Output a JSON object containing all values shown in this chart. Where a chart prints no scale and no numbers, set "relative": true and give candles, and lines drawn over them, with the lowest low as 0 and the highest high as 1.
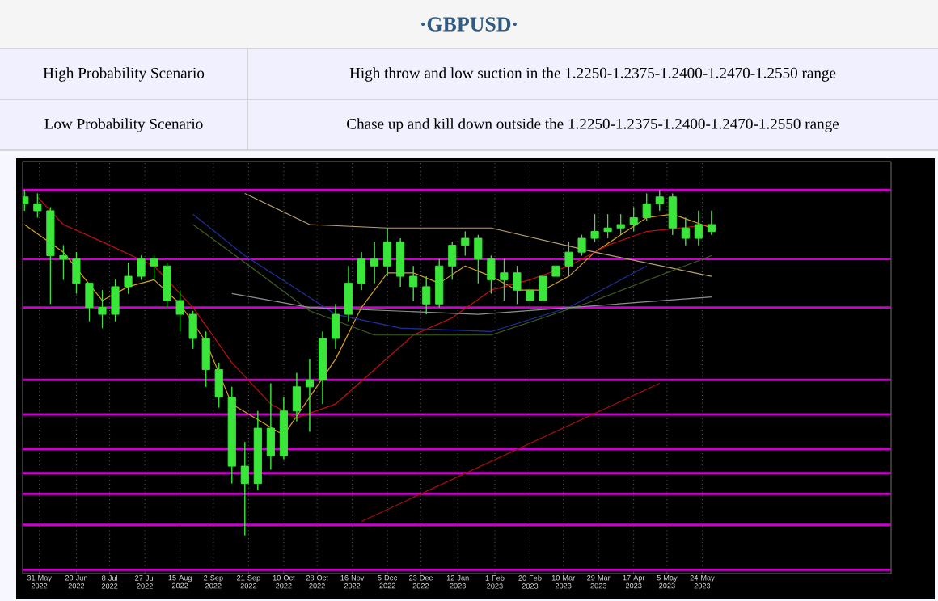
{
  "chart_data": [
    {
      "type": "other",
      "title": "·GBPUSD·",
      "annotations": [
        "High Probability Scenario",
        "High throw and low suction in the 1.2250-1.2375-1.2400-1.2470-1.2550 range",
        "Low Probability Scenario",
        "Chase up and kill down outside the 1.2250-1.2375-1.2400-1.2470-1.2550 range"
      ]
    },
    {
      "type": "candlestick",
      "relative": true,
      "color": "#39e639",
      "grid": "x",
      "xlim": [
        "2022-05-22",
        "2023-09-03"
      ],
      "xticks": [
        {
          "value": "2022-05-31",
          "label": "31 May 2022"
        },
        {
          "value": "2022-06-20",
          "label": "20 Jun 2022"
        },
        {
          "value": "2022-07-08",
          "label": "8 Jul 2022"
        },
        {
          "value": "2022-07-27",
          "label": "27 Jul 2022"
        },
        {
          "value": "2022-08-15",
          "label": "15 Aug 2022"
        },
        {
          "value": "2022-09-02",
          "label": "2 Sep 2022"
        },
        {
          "value": "2022-09-21",
          "label": "21 Sep 2022"
        },
        {
          "value": "2022-10-10",
          "label": "10 Oct 2022"
        },
        {
          "value": "2022-10-28",
          "label": "28 Oct 2022"
        },
        {
          "value": "2022-11-16",
          "label": "16 Nov 2022"
        },
        {
          "value": "2022-12-05",
          "label": "5 Dec 2022"
        },
        {
          "value": "2022-12-23",
          "label": "23 Dec 2022"
        },
        {
          "value": "2023-01-12",
          "label": "12 Jan 2023"
        },
        {
          "value": "2023-02-01",
          "label": "1 Feb 2023"
        },
        {
          "value": "2023-02-20",
          "label": "20 Feb 2023"
        },
        {
          "value": "2023-03-10",
          "label": "10 Mar 2023"
        },
        {
          "value": "2023-03-29",
          "label": "29 Mar 2023"
        },
        {
          "value": "2023-04-17",
          "label": "17 Apr 2023"
        },
        {
          "value": "2023-05-05",
          "label": "5 May 2023"
        },
        {
          "value": "2023-05-24",
          "label": "24 May 2023"
        }
      ],
      "x": [
        "2022-05-23",
        "2022-05-30",
        "2022-06-06",
        "2022-06-13",
        "2022-06-20",
        "2022-06-27",
        "2022-07-04",
        "2022-07-11",
        "2022-07-18",
        "2022-07-25",
        "2022-08-01",
        "2022-08-08",
        "2022-08-15",
        "2022-08-22",
        "2022-08-29",
        "2022-09-05",
        "2022-09-12",
        "2022-09-19",
        "2022-09-26",
        "2022-10-03",
        "2022-10-10",
        "2022-10-17",
        "2022-10-24",
        "2022-10-31",
        "2022-11-07",
        "2022-11-14",
        "2022-11-21",
        "2022-11-28",
        "2022-12-05",
        "2022-12-12",
        "2022-12-19",
        "2022-12-26",
        "2023-01-02",
        "2023-01-09",
        "2023-01-16",
        "2023-01-23",
        "2023-01-30",
        "2023-02-06",
        "2023-02-13",
        "2023-02-20",
        "2023-02-27",
        "2023-03-06",
        "2023-03-13",
        "2023-03-20",
        "2023-03-27",
        "2023-04-03",
        "2023-04-10",
        "2023-04-17",
        "2023-04-24",
        "2023-05-01",
        "2023-05-08",
        "2023-05-15",
        "2023-05-22",
        "2023-05-29"
      ],
      "ohlc": [
        [
          0.98,
          1.0,
          0.94,
          0.96
        ],
        [
          0.96,
          0.99,
          0.92,
          0.94
        ],
        [
          0.94,
          0.95,
          0.67,
          0.81
        ],
        [
          0.81,
          0.84,
          0.74,
          0.8
        ],
        [
          0.8,
          0.82,
          0.7,
          0.73
        ],
        [
          0.73,
          0.73,
          0.62,
          0.66
        ],
        [
          0.66,
          0.71,
          0.6,
          0.64
        ],
        [
          0.64,
          0.74,
          0.62,
          0.72
        ],
        [
          0.72,
          0.79,
          0.7,
          0.75
        ],
        [
          0.75,
          0.81,
          0.74,
          0.8
        ],
        [
          0.8,
          0.81,
          0.74,
          0.78
        ],
        [
          0.78,
          0.79,
          0.66,
          0.68
        ],
        [
          0.68,
          0.71,
          0.59,
          0.64
        ],
        [
          0.64,
          0.65,
          0.54,
          0.57
        ],
        [
          0.57,
          0.59,
          0.43,
          0.48
        ],
        [
          0.48,
          0.5,
          0.37,
          0.4
        ],
        [
          0.4,
          0.43,
          0.15,
          0.2
        ],
        [
          0.2,
          0.27,
          0.0,
          0.15
        ],
        [
          0.15,
          0.36,
          0.13,
          0.31
        ],
        [
          0.31,
          0.44,
          0.19,
          0.23
        ],
        [
          0.23,
          0.4,
          0.22,
          0.36
        ],
        [
          0.36,
          0.47,
          0.33,
          0.43
        ],
        [
          0.43,
          0.51,
          0.3,
          0.45
        ],
        [
          0.45,
          0.59,
          0.38,
          0.57
        ],
        [
          0.57,
          0.67,
          0.54,
          0.64
        ],
        [
          0.64,
          0.78,
          0.62,
          0.73
        ],
        [
          0.73,
          0.82,
          0.71,
          0.8
        ],
        [
          0.8,
          0.85,
          0.73,
          0.78
        ],
        [
          0.78,
          0.89,
          0.75,
          0.85
        ],
        [
          0.85,
          0.86,
          0.72,
          0.75
        ],
        [
          0.75,
          0.78,
          0.68,
          0.72
        ],
        [
          0.72,
          0.75,
          0.64,
          0.67
        ],
        [
          0.67,
          0.8,
          0.66,
          0.78
        ],
        [
          0.78,
          0.85,
          0.74,
          0.84
        ],
        [
          0.84,
          0.88,
          0.81,
          0.86
        ],
        [
          0.86,
          0.87,
          0.73,
          0.8
        ],
        [
          0.8,
          0.81,
          0.7,
          0.74
        ],
        [
          0.74,
          0.8,
          0.68,
          0.76
        ],
        [
          0.76,
          0.78,
          0.67,
          0.71
        ],
        [
          0.71,
          0.74,
          0.64,
          0.68
        ],
        [
          0.68,
          0.78,
          0.6,
          0.75
        ],
        [
          0.75,
          0.81,
          0.73,
          0.78
        ],
        [
          0.78,
          0.85,
          0.75,
          0.82
        ],
        [
          0.82,
          0.87,
          0.81,
          0.86
        ],
        [
          0.86,
          0.93,
          0.85,
          0.88
        ],
        [
          0.88,
          0.93,
          0.86,
          0.89
        ],
        [
          0.89,
          0.93,
          0.87,
          0.9
        ],
        [
          0.9,
          0.95,
          0.88,
          0.92
        ],
        [
          0.92,
          0.99,
          0.91,
          0.96
        ],
        [
          0.96,
          1.0,
          0.94,
          0.98
        ],
        [
          0.98,
          0.99,
          0.87,
          0.89
        ],
        [
          0.89,
          0.92,
          0.84,
          0.86
        ],
        [
          0.86,
          0.94,
          0.84,
          0.9
        ],
        [
          0.9,
          0.94,
          0.87,
          0.88
        ]
      ],
      "series": [
        {
          "type": "line",
          "color": "#d4a020",
          "x": [
            "2022-05-23",
            "2022-06-13",
            "2022-07-04",
            "2022-07-18",
            "2022-08-01",
            "2022-08-15",
            "2022-08-29",
            "2022-09-12",
            "2022-10-10",
            "2022-10-24",
            "2022-11-07",
            "2022-11-21",
            "2022-12-05",
            "2022-12-19",
            "2023-01-02",
            "2023-01-16",
            "2023-01-30",
            "2023-02-13",
            "2023-02-27",
            "2023-03-13",
            "2023-03-27",
            "2023-04-10",
            "2023-04-24",
            "2023-05-08",
            "2023-05-29"
          ],
          "values": [
            0.9,
            0.82,
            0.68,
            0.72,
            0.74,
            0.67,
            0.56,
            0.38,
            0.29,
            0.4,
            0.51,
            0.66,
            0.76,
            0.76,
            0.73,
            0.78,
            0.75,
            0.71,
            0.71,
            0.75,
            0.82,
            0.87,
            0.92,
            0.93,
            0.89
          ]
        },
        {
          "type": "line",
          "color": "#c01010",
          "x": [
            "2022-05-30",
            "2022-06-13",
            "2022-07-04",
            "2022-08-01",
            "2022-08-22",
            "2022-09-12",
            "2022-10-03",
            "2022-10-17",
            "2022-11-07",
            "2022-11-28",
            "2022-12-19",
            "2023-01-09",
            "2023-01-30",
            "2023-02-20",
            "2023-03-13",
            "2023-04-03",
            "2023-04-24",
            "2023-05-29"
          ],
          "values": [
            0.98,
            0.9,
            0.85,
            0.78,
            0.66,
            0.5,
            0.38,
            0.34,
            0.38,
            0.48,
            0.58,
            0.63,
            0.71,
            0.74,
            0.78,
            0.84,
            0.88,
            0.9
          ]
        },
        {
          "type": "line",
          "color": "#b8a070",
          "x": [
            "2022-09-19",
            "2022-10-24",
            "2022-12-05",
            "2023-01-30",
            "2023-03-27",
            "2023-05-29"
          ],
          "values": [
            0.99,
            0.9,
            0.89,
            0.89,
            0.82,
            0.75
          ]
        },
        {
          "type": "line",
          "color": "#2030a0",
          "x": [
            "2022-08-22",
            "2022-09-19",
            "2022-11-07",
            "2022-12-12",
            "2023-01-30",
            "2023-03-13",
            "2023-04-24"
          ],
          "values": [
            0.93,
            0.81,
            0.64,
            0.6,
            0.59,
            0.66,
            0.78
          ]
        },
        {
          "type": "line",
          "color": "#406020",
          "x": [
            "2022-08-22",
            "2022-09-19",
            "2022-10-24",
            "2022-11-28",
            "2023-01-30",
            "2023-03-27",
            "2023-05-29"
          ],
          "values": [
            0.9,
            0.79,
            0.65,
            0.58,
            0.58,
            0.68,
            0.81
          ]
        },
        {
          "type": "line",
          "color": "#909090",
          "x": [
            "2022-09-12",
            "2022-10-24",
            "2023-01-23",
            "2023-05-29"
          ],
          "values": [
            0.7,
            0.66,
            0.64,
            0.69
          ]
        },
        {
          "type": "line",
          "color": "#a01010",
          "x": [
            "2022-11-21",
            "2023-05-01"
          ],
          "values": [
            0.04,
            0.44
          ]
        }
      ],
      "ref_lines": [
        {
          "axis": "y",
          "value": 1.0,
          "color": "#cc00cc"
        },
        {
          "axis": "y",
          "value": 0.8,
          "color": "#cc00cc"
        },
        {
          "axis": "y",
          "value": 0.66,
          "color": "#cc00cc"
        },
        {
          "axis": "y",
          "value": 0.45,
          "color": "#cc00cc"
        },
        {
          "axis": "y",
          "value": 0.35,
          "color": "#cc00cc"
        },
        {
          "axis": "y",
          "value": 0.25,
          "color": "#cc00cc"
        },
        {
          "axis": "y",
          "value": 0.18,
          "color": "#cc00cc"
        },
        {
          "axis": "y",
          "value": 0.12,
          "color": "#cc00cc"
        },
        {
          "axis": "y",
          "value": 0.03,
          "color": "#cc00cc"
        },
        {
          "axis": "y",
          "value": -0.1,
          "color": "#cc00cc"
        }
      ]
    }
  ]
}
